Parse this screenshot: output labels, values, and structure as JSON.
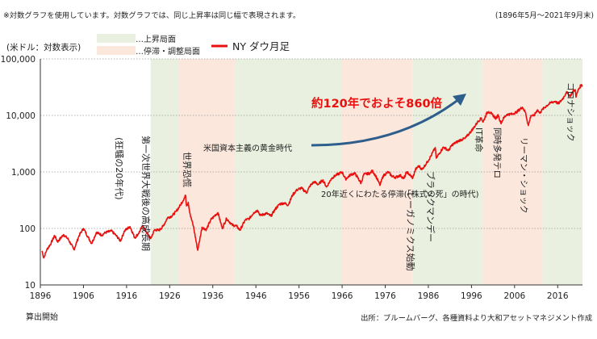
{
  "header": {
    "note": "※対数グラフを使用しています。対数グラフでは、同じ上昇率は同じ幅で表現されます。",
    "period": "(1896年5月〜2021年9月末)"
  },
  "footer": {
    "start_label": "算出開始",
    "source": "出所：ブルームバーグ、各種資料より大和アセットマネジメント作成"
  },
  "chart_data": {
    "type": "line",
    "ylabel": "(米ドル：対数表示)",
    "y_scale": "log",
    "ylim": [
      10,
      100000
    ],
    "xlim": [
      1896,
      2021.75
    ],
    "y_tick_labels": [
      "100,000",
      "10,000",
      "1,000",
      "100",
      "10"
    ],
    "y_ticks": [
      100000,
      10000,
      1000,
      100,
      10
    ],
    "x_ticks": [
      1896,
      1906,
      1916,
      1926,
      1936,
      1946,
      1956,
      1966,
      1976,
      1986,
      1996,
      2006,
      2016
    ],
    "grid": "horizontal dotted",
    "legend_position": "top",
    "legend": [
      {
        "label": "…上昇局面",
        "kind": "band",
        "color": "#e9f0df"
      },
      {
        "label": "…停滞・調整局面",
        "kind": "band",
        "color": "#fbe7dc"
      },
      {
        "label": "NY ダウ月足",
        "kind": "line",
        "color": "#e8110f"
      }
    ],
    "phases": [
      {
        "kind": "rise",
        "from": 1921.6,
        "to": 1928.1
      },
      {
        "kind": "stagnation",
        "from": 1928.1,
        "to": 1941.3
      },
      {
        "kind": "rise",
        "from": 1941.3,
        "to": 1965.9
      },
      {
        "kind": "stagnation",
        "from": 1965.9,
        "to": 1982.4
      },
      {
        "kind": "rise",
        "from": 1982.4,
        "to": 1998.6
      },
      {
        "kind": "stagnation",
        "from": 1998.6,
        "to": 2012.5
      },
      {
        "kind": "rise",
        "from": 2012.5,
        "to": 2021.75
      }
    ],
    "series": [
      {
        "name": "NY ダウ月足",
        "color": "#e8110f",
        "points": [
          [
            1896.4,
            40
          ],
          [
            1896.8,
            30
          ],
          [
            1897.5,
            42
          ],
          [
            1898.5,
            55
          ],
          [
            1899.3,
            75
          ],
          [
            1900.0,
            58
          ],
          [
            1901.4,
            78
          ],
          [
            1902.5,
            64
          ],
          [
            1903.8,
            42
          ],
          [
            1905.0,
            75
          ],
          [
            1906.0,
            100
          ],
          [
            1907.0,
            72
          ],
          [
            1907.9,
            54
          ],
          [
            1909.0,
            85
          ],
          [
            1910.3,
            76
          ],
          [
            1911.0,
            84
          ],
          [
            1912.5,
            90
          ],
          [
            1913.5,
            76
          ],
          [
            1914.6,
            60
          ],
          [
            1915.5,
            90
          ],
          [
            1916.8,
            108
          ],
          [
            1917.9,
            68
          ],
          [
            1918.8,
            82
          ],
          [
            1919.8,
            112
          ],
          [
            1920.5,
            88
          ],
          [
            1921.6,
            66
          ],
          [
            1922.5,
            95
          ],
          [
            1923.5,
            92
          ],
          [
            1924.5,
            110
          ],
          [
            1925.5,
            155
          ],
          [
            1926.5,
            165
          ],
          [
            1927.5,
            200
          ],
          [
            1928.5,
            260
          ],
          [
            1929.7,
            381
          ],
          [
            1929.9,
            250
          ],
          [
            1930.3,
            290
          ],
          [
            1930.8,
            170
          ],
          [
            1931.5,
            110
          ],
          [
            1932.5,
            41
          ],
          [
            1933.0,
            65
          ],
          [
            1933.5,
            105
          ],
          [
            1934.5,
            95
          ],
          [
            1935.5,
            140
          ],
          [
            1936.5,
            170
          ],
          [
            1937.2,
            190
          ],
          [
            1938.2,
            100
          ],
          [
            1939.2,
            150
          ],
          [
            1940.5,
            115
          ],
          [
            1941.5,
            110
          ],
          [
            1942.3,
            93
          ],
          [
            1943.5,
            140
          ],
          [
            1944.5,
            150
          ],
          [
            1945.5,
            190
          ],
          [
            1946.4,
            210
          ],
          [
            1947.0,
            170
          ],
          [
            1948.5,
            185
          ],
          [
            1949.5,
            165
          ],
          [
            1950.5,
            220
          ],
          [
            1951.5,
            270
          ],
          [
            1952.5,
            280
          ],
          [
            1953.5,
            260
          ],
          [
            1954.5,
            390
          ],
          [
            1955.5,
            480
          ],
          [
            1956.5,
            520
          ],
          [
            1957.8,
            430
          ],
          [
            1958.5,
            560
          ],
          [
            1959.5,
            670
          ],
          [
            1960.5,
            600
          ],
          [
            1961.5,
            720
          ],
          [
            1962.4,
            540
          ],
          [
            1963.5,
            760
          ],
          [
            1964.5,
            870
          ],
          [
            1966.0,
            995
          ],
          [
            1966.8,
            745
          ],
          [
            1968.0,
            900
          ],
          [
            1969.0,
            940
          ],
          [
            1970.4,
            630
          ],
          [
            1971.0,
            900
          ],
          [
            1972.5,
            950
          ],
          [
            1973.0,
            1050
          ],
          [
            1973.8,
            850
          ],
          [
            1974.8,
            580
          ],
          [
            1975.5,
            850
          ],
          [
            1976.7,
            1000
          ],
          [
            1977.5,
            850
          ],
          [
            1978.3,
            800
          ],
          [
            1979.5,
            870
          ],
          [
            1980.3,
            760
          ],
          [
            1981.0,
            1000
          ],
          [
            1982.4,
            780
          ],
          [
            1983.0,
            1100
          ],
          [
            1983.8,
            1280
          ],
          [
            1984.5,
            1100
          ],
          [
            1985.5,
            1400
          ],
          [
            1986.5,
            1850
          ],
          [
            1987.6,
            2700
          ],
          [
            1987.85,
            1750
          ],
          [
            1988.5,
            2100
          ],
          [
            1989.5,
            2750
          ],
          [
            1990.7,
            2400
          ],
          [
            1991.5,
            3000
          ],
          [
            1992.5,
            3350
          ],
          [
            1993.5,
            3700
          ],
          [
            1994.5,
            3900
          ],
          [
            1995.5,
            4800
          ],
          [
            1996.5,
            6000
          ],
          [
            1997.5,
            7800
          ],
          [
            1998.3,
            9000
          ],
          [
            1998.7,
            7600
          ],
          [
            1999.5,
            10800
          ],
          [
            2000.0,
            11700
          ],
          [
            2000.8,
            10400
          ],
          [
            2001.7,
            8800
          ],
          [
            2002.2,
            10300
          ],
          [
            2002.8,
            7300
          ],
          [
            2003.5,
            9000
          ],
          [
            2004.2,
            10400
          ],
          [
            2005.5,
            10600
          ],
          [
            2006.5,
            11500
          ],
          [
            2007.8,
            14000
          ],
          [
            2008.5,
            11400
          ],
          [
            2009.2,
            6600
          ],
          [
            2009.8,
            10000
          ],
          [
            2010.5,
            9800
          ],
          [
            2011.3,
            12600
          ],
          [
            2011.8,
            11000
          ],
          [
            2012.5,
            12800
          ],
          [
            2013.5,
            15000
          ],
          [
            2014.5,
            17000
          ],
          [
            2015.5,
            17800
          ],
          [
            2016.1,
            16000
          ],
          [
            2016.8,
            18200
          ],
          [
            2017.5,
            21500
          ],
          [
            2018.0,
            26000
          ],
          [
            2018.4,
            24000
          ],
          [
            2018.95,
            22000
          ],
          [
            2019.5,
            26700
          ],
          [
            2020.1,
            28500
          ],
          [
            2020.25,
            21000
          ],
          [
            2020.7,
            27500
          ],
          [
            2021.0,
            30500
          ],
          [
            2021.5,
            34800
          ],
          [
            2021.75,
            33900
          ]
        ]
      }
    ],
    "annotations": [
      {
        "text": "約120年でおよそ860倍",
        "kind": "headline"
      },
      {
        "text": "第一次世界大戦後の高成長期",
        "kind": "vertical"
      },
      {
        "text": "(狂騒の20年代)",
        "kind": "vertical"
      },
      {
        "text": "世界恐慌",
        "kind": "vertical"
      },
      {
        "text": "米国資本主義の黄金時代",
        "kind": "horizontal"
      },
      {
        "text": "20年近くにわたる停滞(「株式の死」の時代)",
        "kind": "horizontal"
      },
      {
        "text": "レーガノミクス始動",
        "kind": "vertical"
      },
      {
        "text": "ブラックマンデー",
        "kind": "vertical"
      },
      {
        "text": "IT革命",
        "kind": "vertical"
      },
      {
        "text": "同時多発テロ",
        "kind": "vertical"
      },
      {
        "text": "リーマン・ショック",
        "kind": "vertical"
      },
      {
        "text": "コロナショック",
        "kind": "vertical"
      }
    ]
  }
}
